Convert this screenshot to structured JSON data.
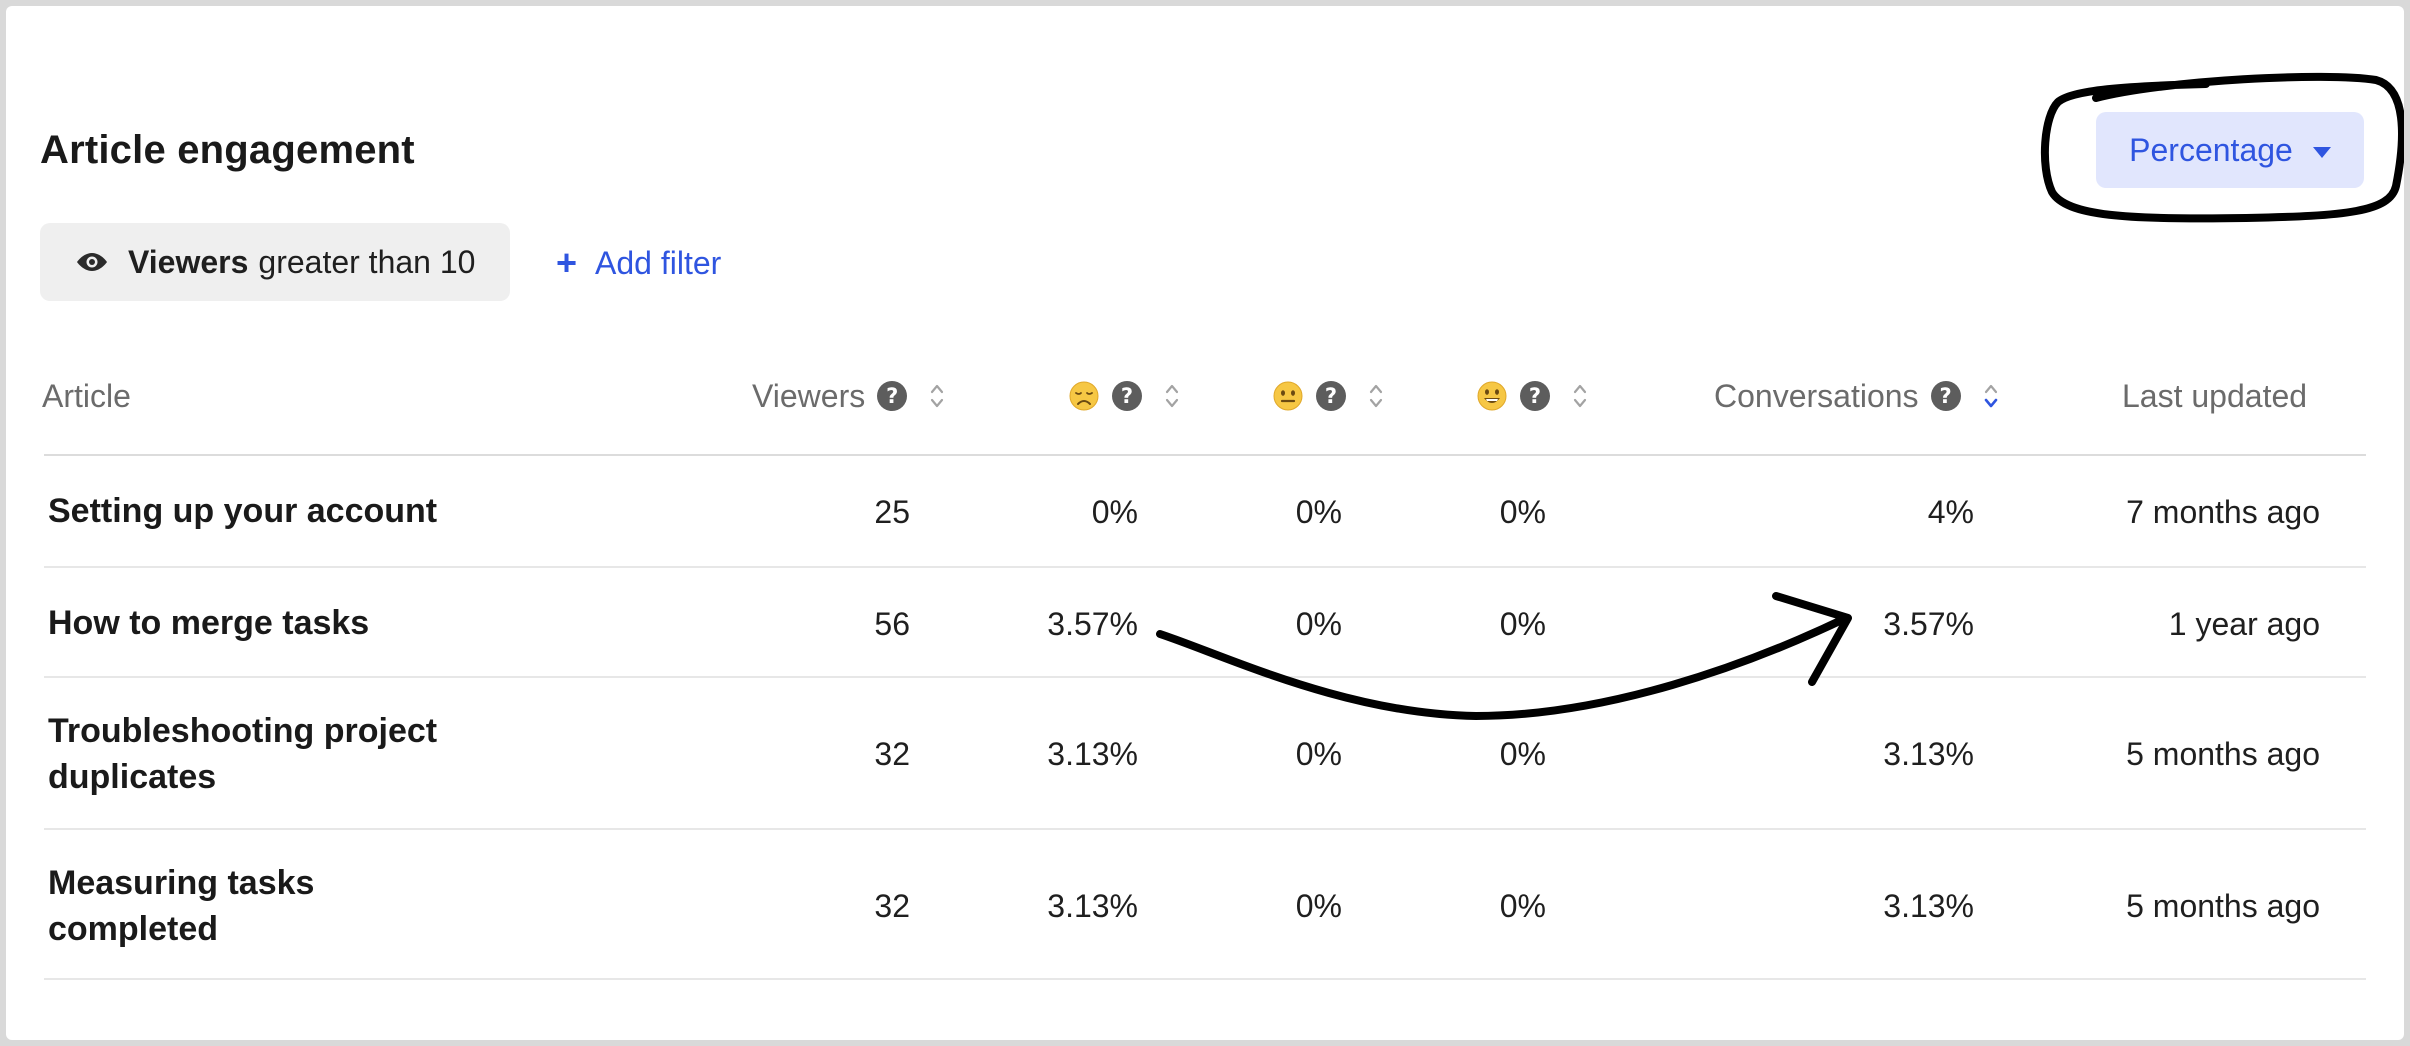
{
  "title": "Article engagement",
  "metric_select": {
    "label": "Percentage"
  },
  "filter": {
    "field": "Viewers",
    "condition": "greater than 10"
  },
  "add_filter": {
    "label": "Add filter"
  },
  "columns": {
    "article": "Article",
    "viewers": "Viewers",
    "conversations": "Conversations",
    "last_updated": "Last updated",
    "help_glyph": "?"
  },
  "rows": [
    {
      "article": "Setting up your account",
      "viewers": "25",
      "sad": "0%",
      "neutral": "0%",
      "happy": "0%",
      "conversations": "4%",
      "last_updated": "7 months ago"
    },
    {
      "article": "How to merge tasks",
      "viewers": "56",
      "sad": "3.57%",
      "neutral": "0%",
      "happy": "0%",
      "conversations": "3.57%",
      "last_updated": "1 year ago"
    },
    {
      "article_line1": "Troubleshooting project",
      "article_line2": "duplicates",
      "viewers": "32",
      "sad": "3.13%",
      "neutral": "0%",
      "happy": "0%",
      "conversations": "3.13%",
      "last_updated": "5 months ago"
    },
    {
      "article_line1": "Measuring tasks",
      "article_line2": "completed",
      "viewers": "32",
      "sad": "3.13%",
      "neutral": "0%",
      "happy": "0%",
      "conversations": "3.13%",
      "last_updated": "5 months ago"
    }
  ],
  "colors": {
    "accent": "#2f55e0",
    "accent_bg": "#e1e6fd",
    "chip_bg": "#efefef",
    "annotation": "#000000"
  },
  "icons": {
    "filter_chip": "eye-icon",
    "sort": "sort-arrows-icon",
    "help": "question-circle-icon",
    "sad": "sad-face-emoji",
    "neutral": "neutral-face-emoji",
    "happy": "happy-face-emoji"
  }
}
